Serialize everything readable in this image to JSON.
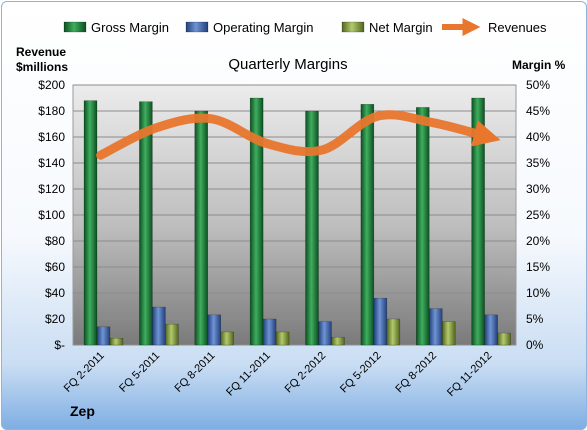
{
  "chart_data": {
    "type": "bar",
    "title": "Quarterly Margins",
    "company": "Zep",
    "y_left_label_line1": "Revenue",
    "y_left_label_line2": "$millions",
    "y_right_label": "Margin %",
    "categories": [
      "FQ 2-2011",
      "FQ 5-2011",
      "FQ 8-2011",
      "FQ 11-2011",
      "FQ 2-2012",
      "FQ 5-2012",
      "FQ 8-2012",
      "FQ 11-2012"
    ],
    "y_left_ticks": [
      "$-",
      "$20",
      "$40",
      "$60",
      "$80",
      "$100",
      "$120",
      "$140",
      "$160",
      "$180",
      "$200"
    ],
    "y_right_ticks": [
      "0%",
      "5%",
      "10%",
      "15%",
      "20%",
      "25%",
      "30%",
      "35%",
      "40%",
      "45%",
      "50%"
    ],
    "ylim_left": [
      0,
      200
    ],
    "ylim_right": [
      0,
      50
    ],
    "series": [
      {
        "name": "Gross Margin",
        "axis": "right",
        "color": "#1e7d3c",
        "values": [
          47.0,
          46.8,
          45.0,
          47.5,
          45.0,
          46.3,
          45.7,
          47.5
        ]
      },
      {
        "name": "Operating Margin",
        "axis": "right",
        "color": "#3e63a8",
        "values": [
          3.5,
          7.3,
          5.8,
          5.0,
          4.5,
          9.0,
          7.0,
          5.8
        ]
      },
      {
        "name": "Net Margin",
        "axis": "right",
        "color": "#7f9a3a",
        "values": [
          1.3,
          4.0,
          2.5,
          2.5,
          1.5,
          5.0,
          4.5,
          2.3
        ]
      },
      {
        "name": "Revenues",
        "axis": "left",
        "type": "line",
        "color": "#e8762d",
        "values": [
          146,
          167,
          174,
          155,
          150,
          176,
          171,
          160
        ]
      }
    ],
    "grid": true,
    "legend_position": "top"
  }
}
